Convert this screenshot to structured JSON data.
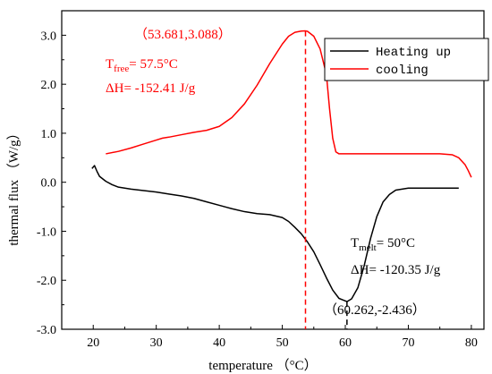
{
  "colors": {
    "heating": "#000000",
    "cooling": "#ff0000",
    "axis": "#000000"
  },
  "chart_data": {
    "type": "line",
    "xlabel": "temperature （°C）",
    "ylabel": "thermal flux （W/g）",
    "xlim": [
      15,
      82
    ],
    "ylim": [
      -3.0,
      3.5
    ],
    "xticks": [
      20,
      30,
      40,
      50,
      60,
      70,
      80
    ],
    "xtick_labels": [
      "20",
      "30",
      "40",
      "50",
      "60",
      "70",
      "80"
    ],
    "yticks": [
      -3.0,
      -2.0,
      -1.0,
      0.0,
      1.0,
      2.0,
      3.0
    ],
    "ytick_labels": [
      "-3.0",
      "-2.0",
      "-1.0",
      "0.0",
      "1.0",
      "2.0",
      "3.0"
    ],
    "grid": false,
    "legend": {
      "position": "top-right"
    },
    "series": [
      {
        "name": "Heating up",
        "color": "#000000",
        "x": [
          19.8,
          20.2,
          20.6,
          21.0,
          22.0,
          23.0,
          24.0,
          25.0,
          26.0,
          28.0,
          30.0,
          32.0,
          34.0,
          36.0,
          38.0,
          40.0,
          42.0,
          44.0,
          46.0,
          48.0,
          50.0,
          51.0,
          52.0,
          53.0,
          54.0,
          55.0,
          56.0,
          57.0,
          58.0,
          59.0,
          60.262,
          61.0,
          62.0,
          63.0,
          64.0,
          65.0,
          66.0,
          67.0,
          68.0,
          70.0,
          72.0,
          74.0,
          76.0,
          78.0
        ],
        "y": [
          0.28,
          0.34,
          0.22,
          0.12,
          0.02,
          -0.05,
          -0.1,
          -0.12,
          -0.14,
          -0.17,
          -0.2,
          -0.24,
          -0.28,
          -0.33,
          -0.4,
          -0.47,
          -0.54,
          -0.6,
          -0.64,
          -0.66,
          -0.72,
          -0.8,
          -0.92,
          -1.05,
          -1.22,
          -1.42,
          -1.68,
          -1.95,
          -2.2,
          -2.37,
          -2.436,
          -2.38,
          -2.15,
          -1.7,
          -1.15,
          -0.7,
          -0.4,
          -0.25,
          -0.16,
          -0.12,
          -0.12,
          -0.12,
          -0.12,
          -0.12
        ]
      },
      {
        "name": "cooling",
        "color": "#ff0000",
        "x": [
          22.0,
          24.0,
          26.0,
          28.0,
          30.0,
          31.0,
          32.0,
          34.0,
          36.0,
          38.0,
          40.0,
          42.0,
          44.0,
          46.0,
          48.0,
          50.0,
          51.0,
          52.0,
          53.0,
          53.681,
          54.0,
          55.0,
          56.0,
          57.0,
          57.5,
          58.0,
          58.5,
          59.0,
          60.0,
          65.0,
          70.0,
          75.0,
          77.0,
          78.0,
          79.0,
          79.5,
          80.0
        ],
        "y": [
          0.58,
          0.63,
          0.7,
          0.78,
          0.86,
          0.9,
          0.92,
          0.97,
          1.02,
          1.06,
          1.14,
          1.32,
          1.6,
          1.98,
          2.42,
          2.82,
          2.98,
          3.06,
          3.085,
          3.088,
          3.08,
          2.98,
          2.72,
          2.2,
          1.5,
          0.9,
          0.62,
          0.58,
          0.58,
          0.58,
          0.58,
          0.58,
          0.56,
          0.5,
          0.36,
          0.24,
          0.1
        ]
      }
    ],
    "markers": [
      {
        "series": "cooling",
        "x": 53.681,
        "y": 3.088,
        "style": "dashed-vertical",
        "color": "#ff0000"
      },
      {
        "series": "Heating up",
        "x": 60.262,
        "y": -2.436,
        "style": "dashed-vertical",
        "color": "#000000"
      }
    ]
  },
  "annotations": {
    "cooling_peak": "（53.681,3.088）",
    "t_free_main": "T",
    "t_free_sub": "free",
    "t_free_value": "= 57.5°C",
    "dh_cooling": "ΔH= -152.41 J/g",
    "t_melt_main": "T",
    "t_melt_sub": "melt",
    "t_melt_value": "= 50°C",
    "dh_heating": "ΔH= -120.35 J/g",
    "heating_peak": "（60.262,-2.436）"
  },
  "legend_items": [
    "Heating up",
    "cooling"
  ]
}
